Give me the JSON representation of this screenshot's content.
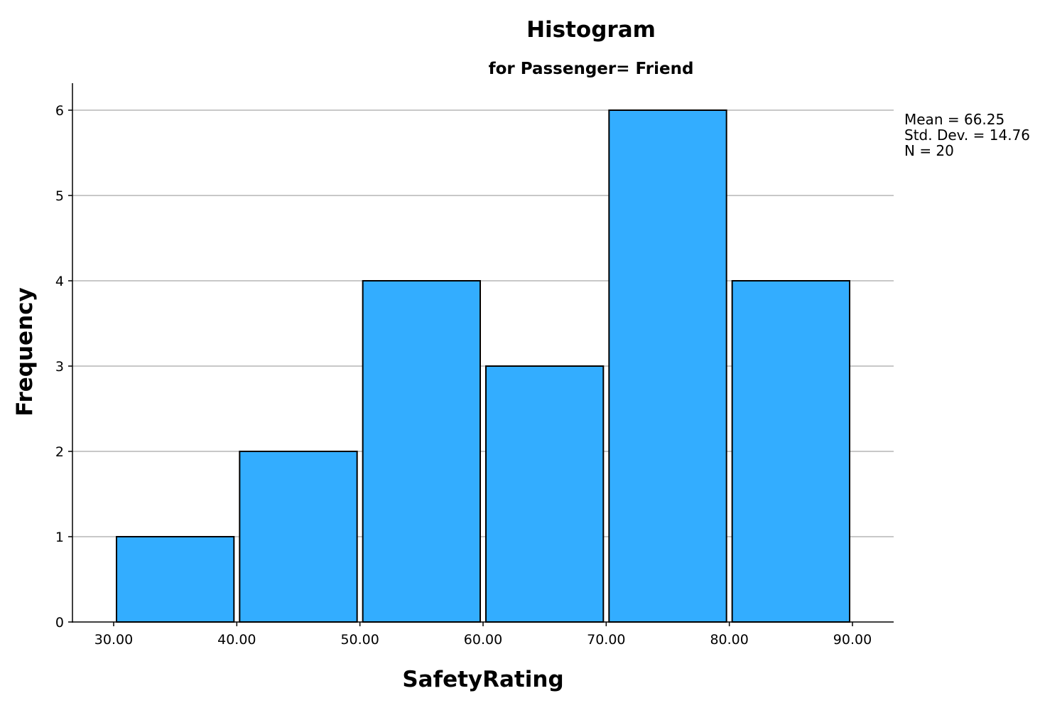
{
  "chart_data": {
    "type": "bar",
    "title": "Histogram",
    "subtitle": "for Passenger= Friend",
    "xlabel": "SafetyRating",
    "ylabel": "Frequency",
    "bins": [
      {
        "start": 30,
        "end": 40,
        "count": 1
      },
      {
        "start": 40,
        "end": 50,
        "count": 2
      },
      {
        "start": 50,
        "end": 60,
        "count": 4
      },
      {
        "start": 60,
        "end": 70,
        "count": 3
      },
      {
        "start": 70,
        "end": 80,
        "count": 6
      },
      {
        "start": 80,
        "end": 90,
        "count": 4
      }
    ],
    "x_ticks": [
      "30.00",
      "40.00",
      "50.00",
      "60.00",
      "70.00",
      "80.00",
      "90.00"
    ],
    "y_ticks": [
      "0",
      "1",
      "2",
      "3",
      "4",
      "5",
      "6"
    ],
    "xlim": [
      30,
      90
    ],
    "ylim": [
      0,
      6
    ],
    "grid": true,
    "bar_color": "#33adff",
    "stats": {
      "mean": "Mean = 66.25",
      "std_dev": "Std. Dev. = 14.76",
      "n": "N = 20"
    }
  }
}
